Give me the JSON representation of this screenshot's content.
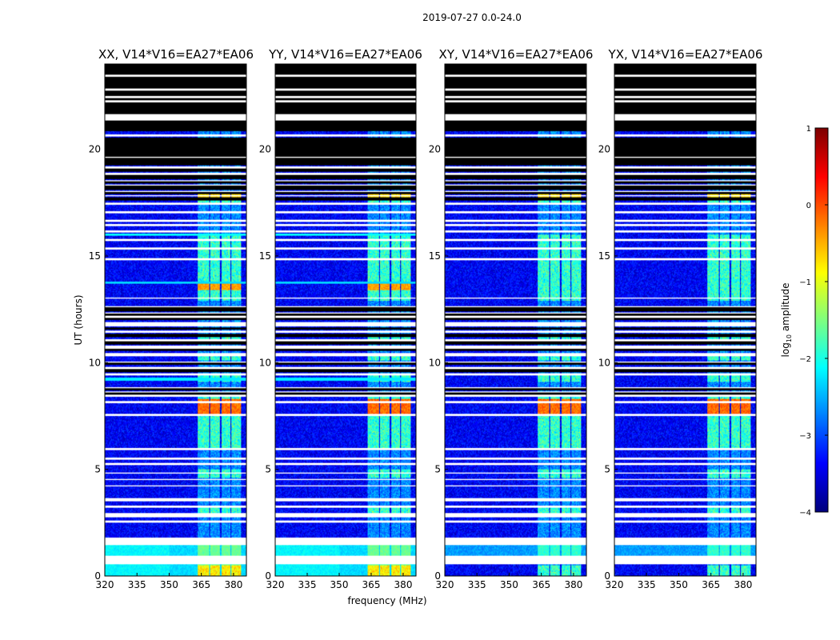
{
  "figure": {
    "suptitle": "2019-07-27 0.0-24.0"
  },
  "chart_data": [
    {
      "type": "heatmap",
      "title": "XX, V14*V16=EA27*EA06",
      "xlabel": "",
      "ylabel": "UT (hours)",
      "xlim": [
        320,
        386
      ],
      "ylim": [
        0,
        24
      ],
      "xticks": [
        "320",
        "335",
        "350",
        "365",
        "380"
      ],
      "yticks": [
        "0",
        "5",
        "10",
        "15",
        "20"
      ],
      "show_yticks": true,
      "lowband_bright": true,
      "band_style": "amp"
    },
    {
      "type": "heatmap",
      "title": "YY, V14*V16=EA27*EA06",
      "xlabel": "frequency (MHz)",
      "ylabel": "",
      "xlim": [
        320,
        386
      ],
      "ylim": [
        0,
        24
      ],
      "xticks": [
        "320",
        "335",
        "350",
        "365",
        "380"
      ],
      "yticks": [
        "0",
        "5",
        "10",
        "15",
        "20"
      ],
      "show_yticks": true,
      "lowband_bright": true,
      "band_style": "amp"
    },
    {
      "type": "heatmap",
      "title": "XY, V14*V16=EA27*EA06",
      "xlabel": "",
      "ylabel": "",
      "xlim": [
        320,
        386
      ],
      "ylim": [
        0,
        24
      ],
      "xticks": [
        "320",
        "335",
        "350",
        "365",
        "380"
      ],
      "yticks": [
        "0",
        "5",
        "10",
        "15",
        "20"
      ],
      "show_yticks": true,
      "lowband_bright": false,
      "band_style": "cross"
    },
    {
      "type": "heatmap",
      "title": "YX, V14*V16=EA27*EA06",
      "xlabel": "",
      "ylabel": "",
      "xlim": [
        320,
        386
      ],
      "ylim": [
        0,
        24
      ],
      "xticks": [
        "320",
        "335",
        "350",
        "365",
        "380"
      ],
      "yticks": [
        "0",
        "5",
        "10",
        "15",
        "20"
      ],
      "show_yticks": true,
      "lowband_bright": false,
      "band_style": "cross"
    }
  ],
  "colorbar": {
    "label": "log10 amplitude",
    "label_base": "log",
    "label_sub": "10",
    "label_rest": " amplitude",
    "range": [
      -4,
      1
    ],
    "ticks": [
      "1",
      "0",
      "−1",
      "−2",
      "−3",
      "−4"
    ],
    "tick_values": [
      1,
      0,
      -1,
      -2,
      -3,
      -4
    ],
    "colormap": "jet"
  },
  "flagged_ranges_hours": [
    [
      0.55,
      0.95
    ],
    [
      1.45,
      1.8
    ],
    [
      2.5,
      2.6
    ],
    [
      2.75,
      2.95
    ],
    [
      3.2,
      3.3
    ],
    [
      3.5,
      3.65
    ],
    [
      4.2,
      4.25
    ],
    [
      4.5,
      4.55
    ],
    [
      4.8,
      4.85
    ],
    [
      5.2,
      5.3
    ],
    [
      5.45,
      5.55
    ],
    [
      5.9,
      6.0
    ],
    [
      7.5,
      7.6
    ],
    [
      8.1,
      8.2
    ],
    [
      8.4,
      8.5
    ],
    [
      8.6,
      8.65
    ],
    [
      8.8,
      8.85
    ],
    [
      9.4,
      9.5
    ],
    [
      9.7,
      9.8
    ],
    [
      10.0,
      10.05
    ],
    [
      10.3,
      10.45
    ],
    [
      10.65,
      10.8
    ],
    [
      11.0,
      11.1
    ],
    [
      11.4,
      11.5
    ],
    [
      11.7,
      11.9
    ],
    [
      12.1,
      12.2
    ],
    [
      12.3,
      12.35
    ],
    [
      12.6,
      12.65
    ],
    [
      13.0,
      13.05
    ],
    [
      14.8,
      14.9
    ],
    [
      15.3,
      15.4
    ],
    [
      15.7,
      15.8
    ],
    [
      16.1,
      16.2
    ],
    [
      16.4,
      16.5
    ],
    [
      16.6,
      16.7
    ],
    [
      17.0,
      17.1
    ],
    [
      17.4,
      17.5
    ],
    [
      17.8,
      17.85
    ],
    [
      18.0,
      18.05
    ],
    [
      18.3,
      18.35
    ],
    [
      18.5,
      18.55
    ],
    [
      18.8,
      18.9
    ],
    [
      19.1,
      19.2
    ],
    [
      19.6,
      19.65
    ],
    [
      20.6,
      20.7
    ],
    [
      21.35,
      21.65
    ],
    [
      22.2,
      22.3
    ],
    [
      22.4,
      22.5
    ],
    [
      22.75,
      22.85
    ],
    [
      23.4,
      23.5
    ]
  ],
  "black_ranges_hours": [
    [
      18.95,
      19.1
    ],
    [
      19.25,
      20.55
    ],
    [
      20.85,
      21.35
    ],
    [
      21.65,
      22.2
    ],
    [
      22.3,
      22.4
    ],
    [
      22.5,
      22.75
    ],
    [
      22.85,
      23.0
    ],
    [
      23.0,
      23.4
    ],
    [
      23.5,
      24.0
    ],
    [
      17.6,
      17.75
    ],
    [
      17.9,
      18.0
    ],
    [
      18.1,
      18.3
    ],
    [
      18.4,
      18.5
    ],
    [
      18.6,
      18.8
    ],
    [
      12.0,
      12.1
    ],
    [
      12.2,
      12.3
    ],
    [
      12.4,
      12.6
    ],
    [
      11.55,
      11.65
    ],
    [
      11.2,
      11.35
    ],
    [
      10.55,
      10.65
    ],
    [
      10.85,
      11.0
    ],
    [
      9.9,
      10.0
    ],
    [
      8.7,
      8.8
    ],
    [
      8.5,
      8.6
    ],
    [
      9.55,
      9.7
    ]
  ]
}
